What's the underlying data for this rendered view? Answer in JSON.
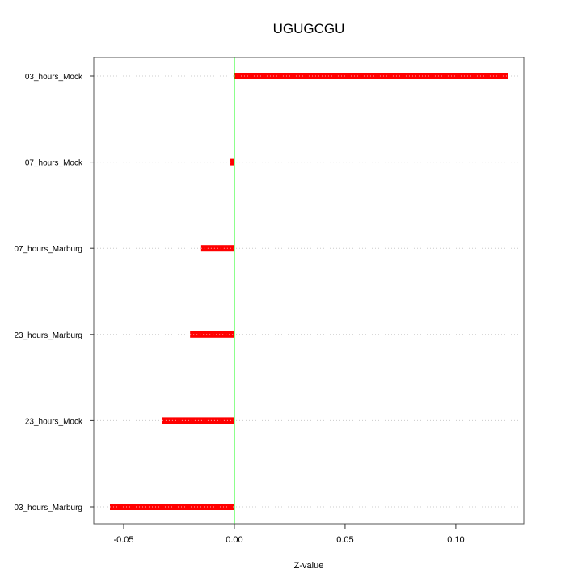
{
  "chart_data": {
    "type": "bar",
    "orientation": "horizontal",
    "title": "UGUGCGU",
    "xlabel": "Z-value",
    "ylabel": "",
    "categories": [
      "03_hours_Mock",
      "07_hours_Mock",
      "07_hours_Marburg",
      "23_hours_Marburg",
      "23_hours_Mock",
      "03_hours_Marburg"
    ],
    "values": [
      0.1234,
      -0.0018,
      -0.015,
      -0.02,
      -0.0325,
      -0.0562
    ],
    "xlim": [
      -0.0635,
      0.1307
    ],
    "xticks": [
      -0.05,
      0.0,
      0.05,
      0.1
    ],
    "xtick_labels": [
      "-0.05",
      "0.00",
      "0.05",
      "0.10"
    ],
    "grid": "horizontal dotted",
    "colors": {
      "bar": "#ff0000",
      "zero_line": "#00ff00",
      "grid": "#cccccc"
    }
  }
}
